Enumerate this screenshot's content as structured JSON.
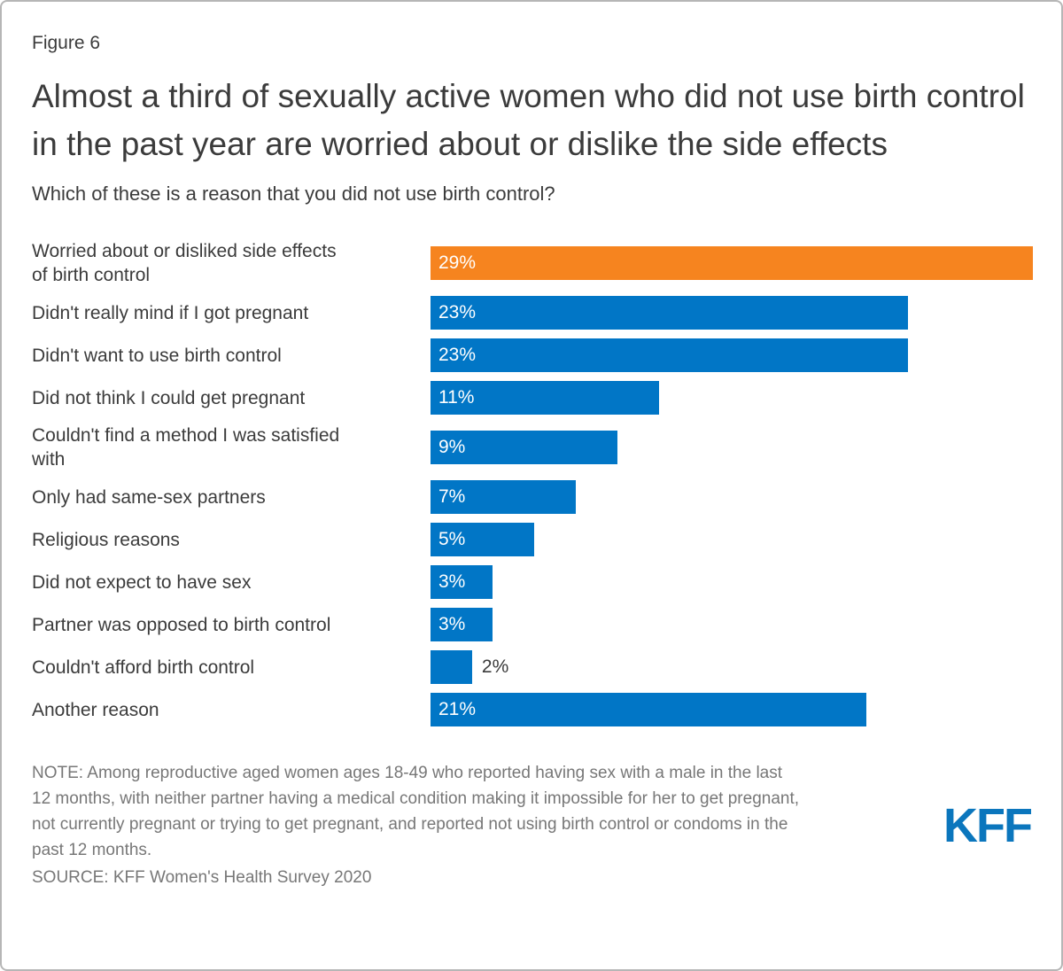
{
  "figure_label": "Figure 6",
  "title": "Almost a third of sexually active women who did not use birth control in the past year are worried about or dislike the side effects",
  "subtitle": "Which of these is a reason that you did not use birth control?",
  "chart_data": {
    "type": "bar",
    "orientation": "horizontal",
    "xlim": [
      0,
      29
    ],
    "grid": false,
    "axis_ticks_visible": false,
    "colors": {
      "bar": "#0176c6",
      "highlight": "#f6841f",
      "inside_label": "#ffffff",
      "outside_label": "#3b3b3b"
    },
    "highlight_index": 0,
    "outside_label_threshold": 3,
    "categories": [
      "Worried about or disliked side effects\nof birth control",
      "Didn't really mind if I got pregnant",
      "Didn't want to use birth control",
      "Did not think I could get pregnant",
      "Couldn't find a method I was satisfied\nwith",
      "Only had same-sex partners",
      "Religious reasons",
      "Did not expect to have sex",
      "Partner was opposed to birth control",
      "Couldn't afford birth control",
      "Another reason"
    ],
    "values": [
      29,
      23,
      23,
      11,
      9,
      7,
      5,
      3,
      3,
      2,
      21
    ],
    "value_labels": [
      "29%",
      "23%",
      "23%",
      "11%",
      "9%",
      "7%",
      "5%",
      "3%",
      "3%",
      "2%",
      "21%"
    ]
  },
  "note": "NOTE: Among reproductive aged women ages 18-49 who reported having sex with a male in the last\n12 months, with neither partner having a medical condition making it impossible for her to get pregnant,\nnot currently pregnant or trying to get pregnant, and reported not using birth control or condoms in the\npast 12 months.",
  "source": "SOURCE: KFF Women's Health Survey 2020",
  "logo_text": "KFF",
  "logo_color": "#0b76bd"
}
